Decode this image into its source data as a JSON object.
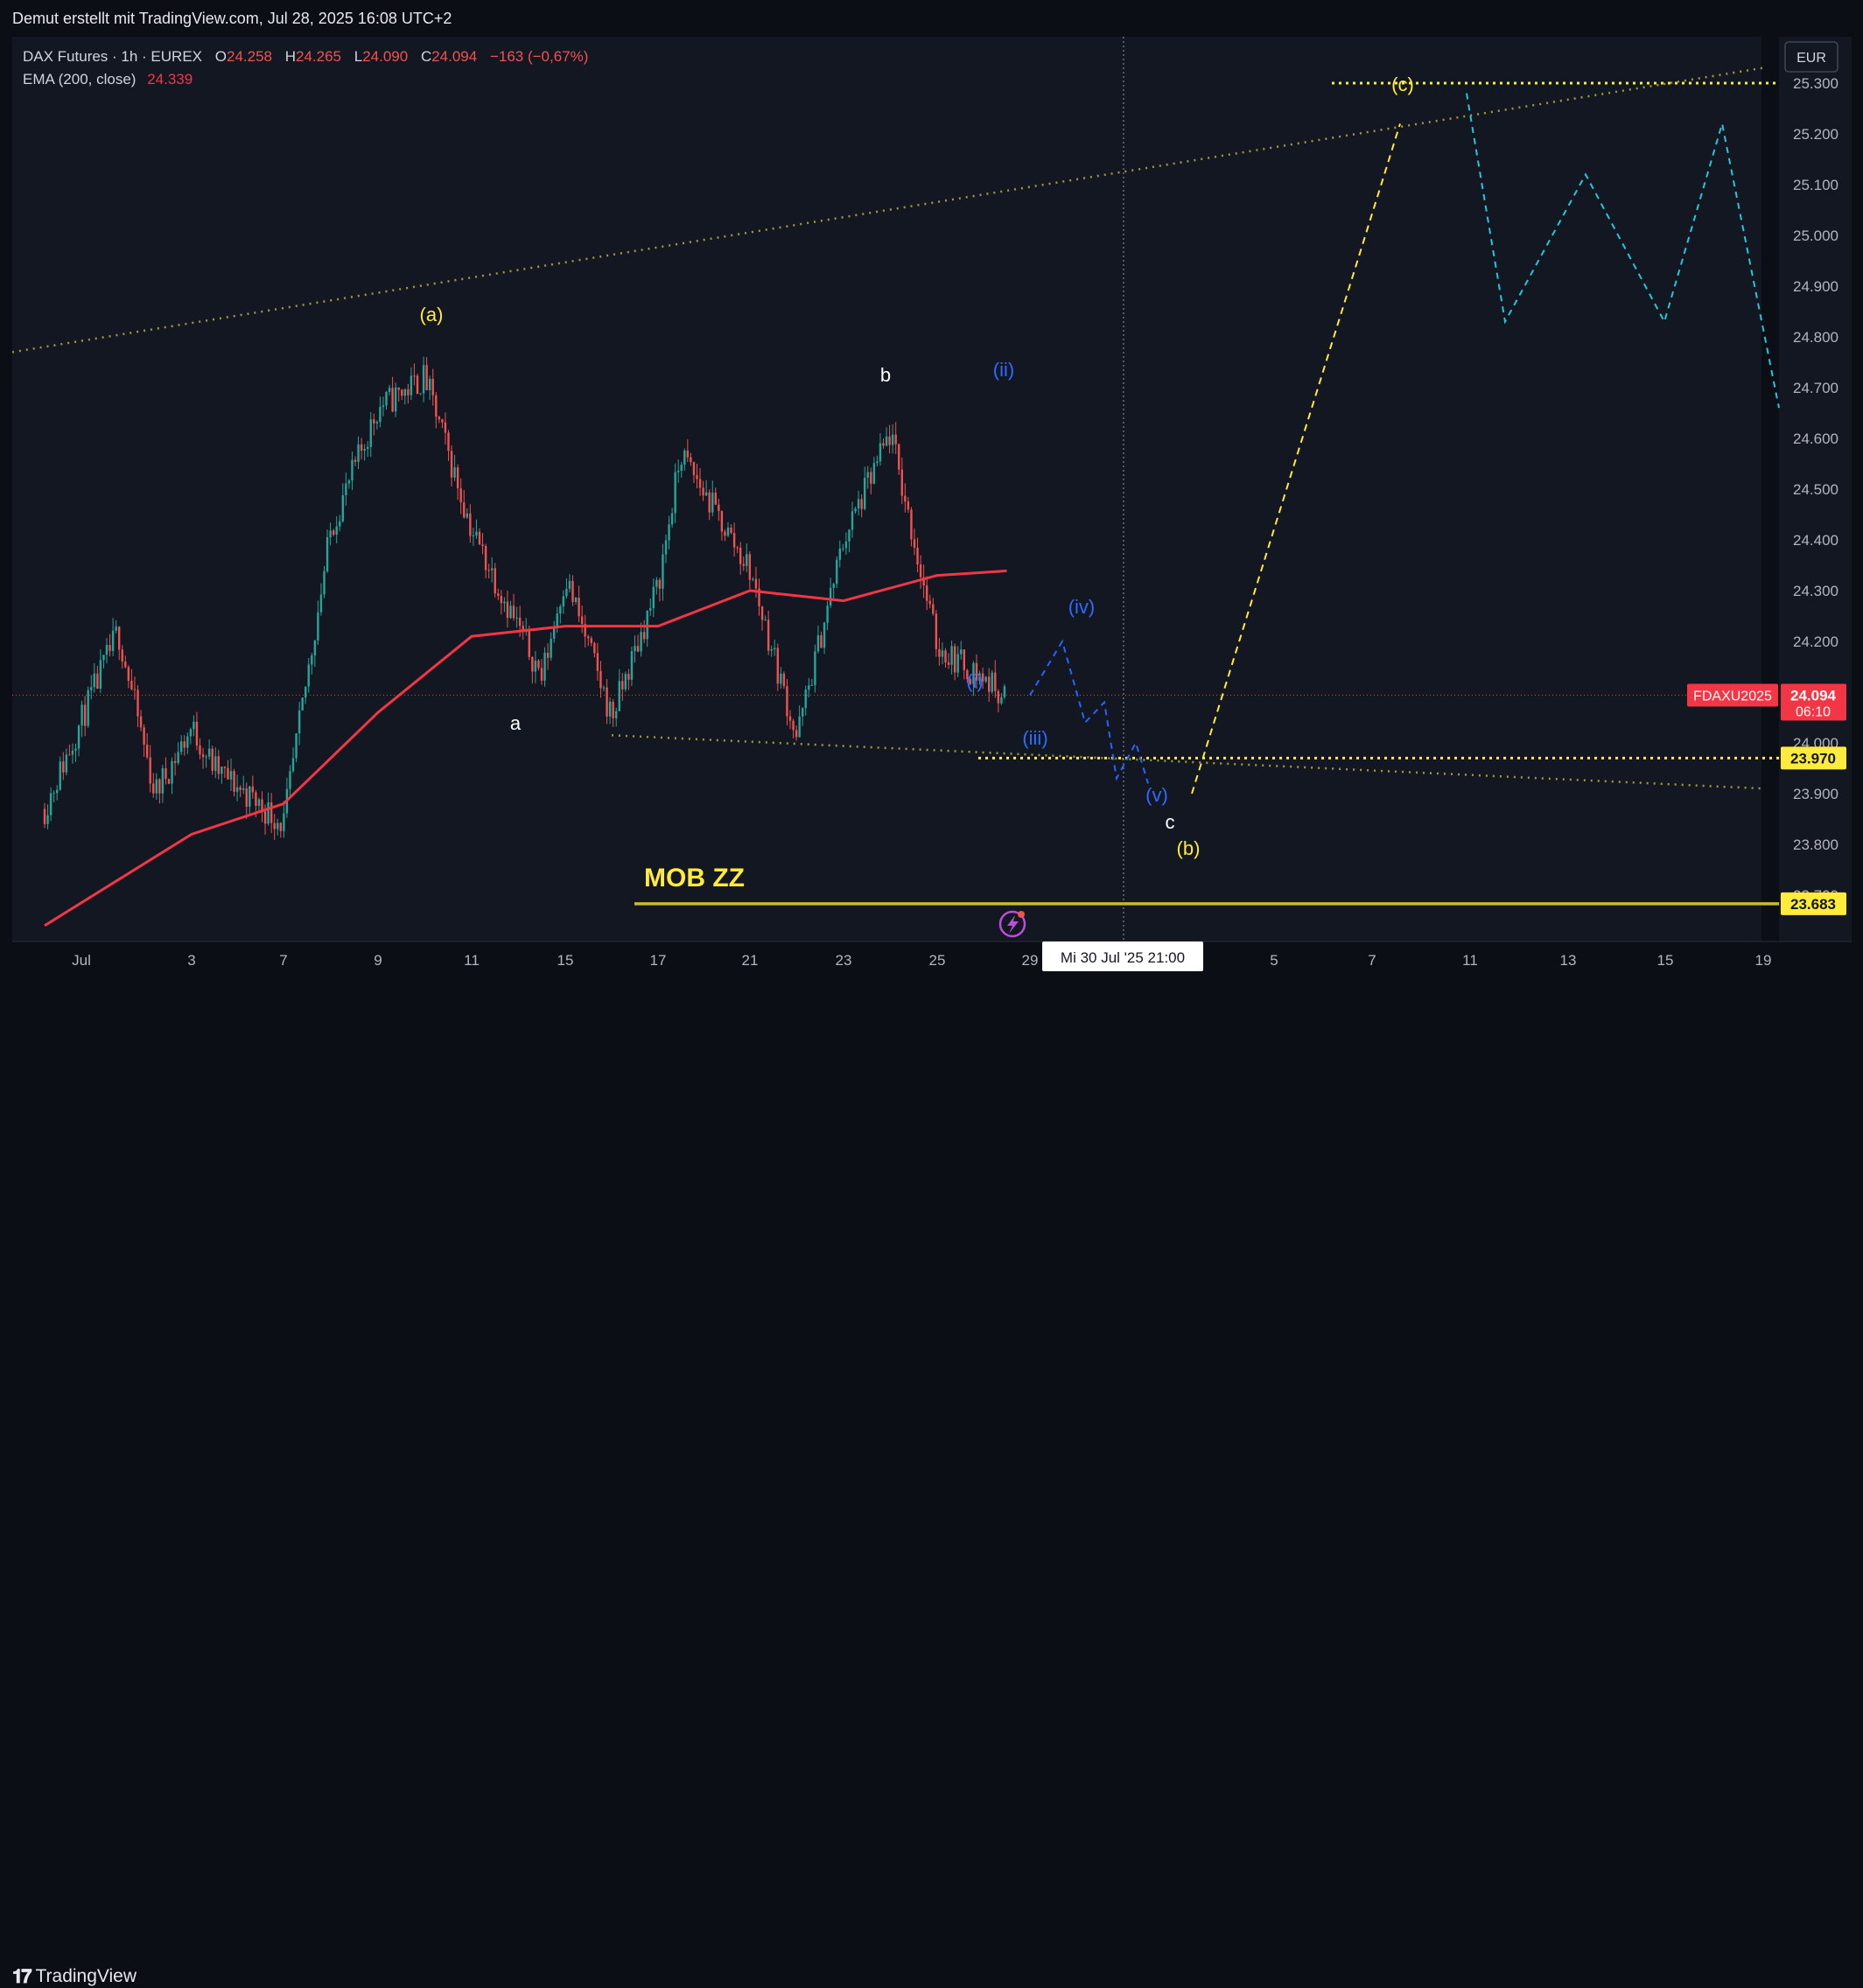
{
  "header": {
    "text": "Demut erstellt mit TradingView.com, Jul 28, 2025 16:08 UTC+2"
  },
  "footer": {
    "logo_text": "TradingView"
  },
  "colors": {
    "background": "#131722",
    "up": "#26a69a",
    "down": "#ef5350",
    "ema": "#f23645",
    "yellow": "#ffeb3b",
    "blue": "#2962ff",
    "cyan": "#26c6da",
    "olive": "#9e9a3a"
  },
  "legend": {
    "symbol": "DAX Futures · 1h · EUREX",
    "o_label": "O",
    "o_value": "24.258",
    "h_label": "H",
    "h_value": "24.265",
    "l_label": "L",
    "l_value": "24.090",
    "c_label": "C",
    "c_value": "24.094",
    "change": "−163 (−0,67%)",
    "ema_label": "EMA (200, close)",
    "ema_value": "24.339"
  },
  "currency_button": "EUR",
  "chart_data": {
    "type": "candlestick",
    "symbol_label": "FDAXU2025",
    "ylim": [
      23620,
      25510
    ],
    "y_ticks": [
      "25.300",
      "25.200",
      "25.100",
      "25.000",
      "24.900",
      "24.800",
      "24.700",
      "24.600",
      "24.500",
      "24.400",
      "24.300",
      "24.200",
      "24.000",
      "23.900",
      "23.800",
      "23.700"
    ],
    "x_ticks": [
      "Jul",
      "3",
      "7",
      "9",
      "11",
      "15",
      "17",
      "21",
      "23",
      "25",
      "29",
      "5",
      "7",
      "11",
      "13",
      "15",
      "19"
    ],
    "cursor_date_label": "Mi 30 Jul '25   21:00",
    "price_tags": [
      {
        "label": "24.094",
        "sub": "06:10",
        "value": 24094,
        "color": "#f23645"
      },
      {
        "label": "23.970",
        "value": 23970,
        "color": "#ffeb3b"
      },
      {
        "label": "23.683",
        "value": 23683,
        "color": "#ffeb3b"
      }
    ],
    "price_path": [
      {
        "x": "Jun 30",
        "y": 23870
      },
      {
        "x": "Jul 1",
        "y": 24220
      },
      {
        "x": "Jul 2",
        "y": 23900
      },
      {
        "x": "Jul 3",
        "y": 24030
      },
      {
        "x": "Jul 4",
        "y": 23950
      },
      {
        "x": "Jul 7",
        "y": 23840
      },
      {
        "x": "Jul 8",
        "y": 24420
      },
      {
        "x": "Jul 9",
        "y": 24660
      },
      {
        "x": "Jul 10",
        "y": 24720
      },
      {
        "x": "Jul 11",
        "y": 24420
      },
      {
        "x": "Jul 14",
        "y": 24130
      },
      {
        "x": "Jul 15",
        "y": 24330
      },
      {
        "x": "Jul 16",
        "y": 24050
      },
      {
        "x": "Jul 17",
        "y": 24310
      },
      {
        "x": "Jul 18",
        "y": 24570
      },
      {
        "x": "Jul 21",
        "y": 24340
      },
      {
        "x": "Jul 22",
        "y": 24010
      },
      {
        "x": "Jul 23",
        "y": 24400
      },
      {
        "x": "Jul 24",
        "y": 24610
      },
      {
        "x": "Jul 25",
        "y": 24190
      },
      {
        "x": "Jul 28",
        "y": 24094
      }
    ],
    "ema_200": [
      {
        "x": "Jun 30",
        "y": 23640
      },
      {
        "x": "Jul 3",
        "y": 23820
      },
      {
        "x": "Jul 7",
        "y": 23880
      },
      {
        "x": "Jul 9",
        "y": 24060
      },
      {
        "x": "Jul 11",
        "y": 24210
      },
      {
        "x": "Jul 15",
        "y": 24230
      },
      {
        "x": "Jul 17",
        "y": 24230
      },
      {
        "x": "Jul 21",
        "y": 24300
      },
      {
        "x": "Jul 23",
        "y": 24280
      },
      {
        "x": "Jul 25",
        "y": 24330
      },
      {
        "x": "Jul 28",
        "y": 24339
      }
    ],
    "projection_blue": [
      {
        "x": "Jul 28",
        "y": 24094
      },
      {
        "x": "Jul 29",
        "y": 24200
      },
      {
        "x": "Jul 29",
        "y": 24040
      },
      {
        "x": "Jul 30",
        "y": 24080
      },
      {
        "x": "Jul 30",
        "y": 23930
      },
      {
        "x": "Jul 31",
        "y": 24000
      },
      {
        "x": "Jul 31",
        "y": 23920
      }
    ],
    "projection_yellow": [
      {
        "x": "Jul 31",
        "y": 23920
      },
      {
        "x": "Aug 8",
        "y": 25220
      }
    ],
    "projection_cyan": [
      {
        "x": "Aug 10",
        "y": 25280
      },
      {
        "x": "Aug 11",
        "y": 24830
      },
      {
        "x": "Aug 13",
        "y": 25120
      },
      {
        "x": "Aug 15",
        "y": 24830
      },
      {
        "x": "Aug 17",
        "y": 25220
      },
      {
        "x": "Aug 19",
        "y": 24660
      }
    ],
    "levels": [
      {
        "label": "MOB ZZ",
        "value": 23683
      },
      {
        "value": 23970
      },
      {
        "value": 25300
      }
    ],
    "wave_labels": [
      {
        "text": "(a)",
        "color": "yellow"
      },
      {
        "text": "a",
        "color": "white"
      },
      {
        "text": "b",
        "color": "white"
      },
      {
        "text": "(ii)",
        "color": "blue"
      },
      {
        "text": "(i)",
        "color": "blue"
      },
      {
        "text": "(iv)",
        "color": "blue"
      },
      {
        "text": "(iii)",
        "color": "blue"
      },
      {
        "text": "(v)",
        "color": "blue"
      },
      {
        "text": "c",
        "color": "white"
      },
      {
        "text": "(b)",
        "color": "yellow"
      },
      {
        "text": "(c)",
        "color": "yellow"
      }
    ],
    "zone_label": "MOB ZZ",
    "grid": false
  }
}
